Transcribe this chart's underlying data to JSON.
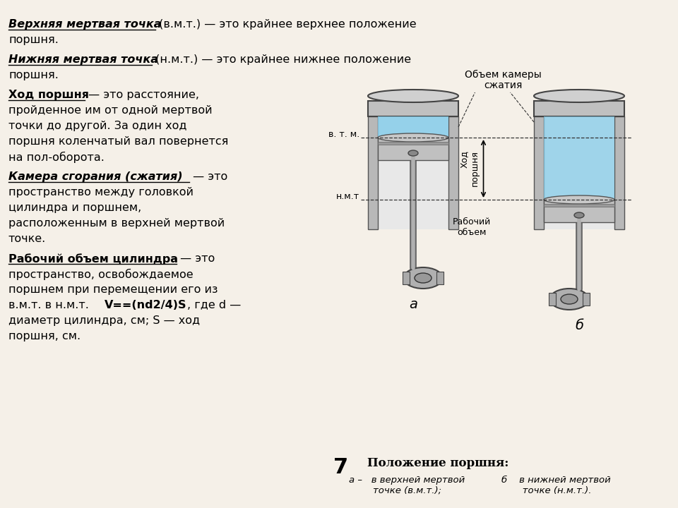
{
  "bg_color": "#f5f0e8",
  "title_fig_num": "7",
  "caption_title": "Положение поршня:",
  "label_a": "а",
  "label_b": "б",
  "label_compression_1": "Объем камеры",
  "label_compression_2": "сжатия",
  "label_vtm": "в. т. м.",
  "label_ntm": "н.м.т",
  "label_stroke": "Ход\nпоршня",
  "label_working_1": "Рабочий",
  "label_working_2": "объем",
  "caption_a": "а –   в верхней мертвой\n        точке (в.м.т.);",
  "caption_b": "б    в нижней мертвой\n       точке (н.м.т.).",
  "p1_bold": "Верхняя мертвая точка",
  "p1_normal": " (в.м.т.) — это крайнее верхнее положение поршня.",
  "p2_bold": "Нижняя мертвая точка",
  "p2_normal": " (н.м.т.) — это крайнее нижнее положение поршня.",
  "p3_bold": "Ход поршня",
  "p3_normal": " — это расстояние, пройденное им от одной мертвой точки до другой. За один ход поршня коленчатый вал повернется на пол-оборота.",
  "p4_bold": "Камера сгорания (сжатия)",
  "p4_normal": " — это пространство между головкой цилиндра и поршнем, расположенным в верхней мертвой точке.",
  "p5_bold": "Рабочий объем цилиндра",
  "p5_normal_1": " — это пространство, освобождаемое поршнем при перемещении его из в.м.т. в н.м.т. ",
  "p5_bold2": "V==(nd2/4)S",
  "p5_normal_2": ", где d — диаметр цилиндра, см; S — ход поршня, см.",
  "bg_color_diag": "#f5f0e8",
  "cyl_wall_color": "#b8b8b8",
  "cyl_inner_color": "#e8e8e8",
  "cap_color": "#c0c0c0",
  "piston_color": "#c0c0c0",
  "chamber_color": "#87CEEB",
  "rod_color_outer": "#666666",
  "rod_color_inner": "#b0b0b0",
  "crank_color": "#b0b0b0",
  "text_color": "#000000",
  "line_color": "#333333"
}
